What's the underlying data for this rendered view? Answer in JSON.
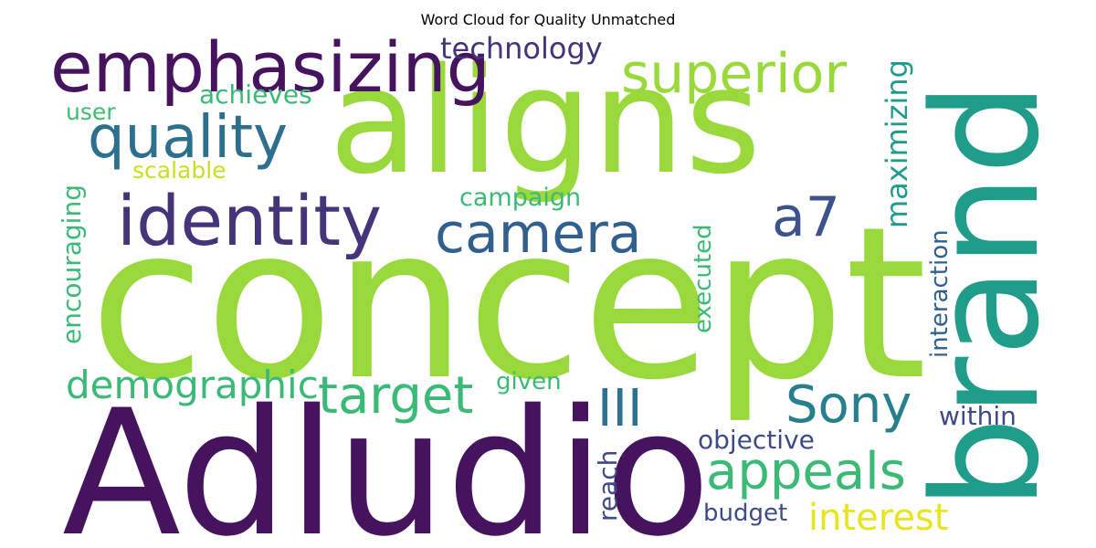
{
  "title": "Word Cloud for Quality Unmatched",
  "words": [
    {
      "text": "concept",
      "color": "#9ad93c"
    },
    {
      "text": "Adludio",
      "color": "#46145e"
    },
    {
      "text": "aligns",
      "color": "#9ad93c"
    },
    {
      "text": "brand",
      "color": "#1f9c8a"
    },
    {
      "text": "emphasizing",
      "color": "#46145e"
    },
    {
      "text": "identity",
      "color": "#44357a"
    },
    {
      "text": "superior",
      "color": "#9ad93c"
    },
    {
      "text": "quality",
      "color": "#2c708e"
    },
    {
      "text": "camera",
      "color": "#31608e"
    },
    {
      "text": "a7",
      "color": "#3b528b"
    },
    {
      "text": "target",
      "color": "#3aba76"
    },
    {
      "text": "Sony",
      "color": "#277f8e"
    },
    {
      "text": "III",
      "color": "#2c728e"
    },
    {
      "text": "appeals",
      "color": "#3aba76"
    },
    {
      "text": "demographic",
      "color": "#3aba76"
    },
    {
      "text": "interest",
      "color": "#e7e51f"
    },
    {
      "text": "technology",
      "color": "#44357a"
    },
    {
      "text": "achieves",
      "color": "#3aba76"
    },
    {
      "text": "user",
      "color": "#40bd72"
    },
    {
      "text": "scalable",
      "color": "#c7e020"
    },
    {
      "text": "campaign",
      "color": "#3aba76"
    },
    {
      "text": "maximizing",
      "color": "#1f9c8a"
    },
    {
      "text": "executed",
      "color": "#3aba76"
    },
    {
      "text": "interaction",
      "color": "#31608e"
    },
    {
      "text": "encouraging",
      "color": "#3aba76"
    },
    {
      "text": "given",
      "color": "#3aba76"
    },
    {
      "text": "within",
      "color": "#3e4a89"
    },
    {
      "text": "objective",
      "color": "#3e4a89"
    },
    {
      "text": "reach",
      "color": "#3e4a89"
    },
    {
      "text": "budget",
      "color": "#3e4a89"
    }
  ]
}
